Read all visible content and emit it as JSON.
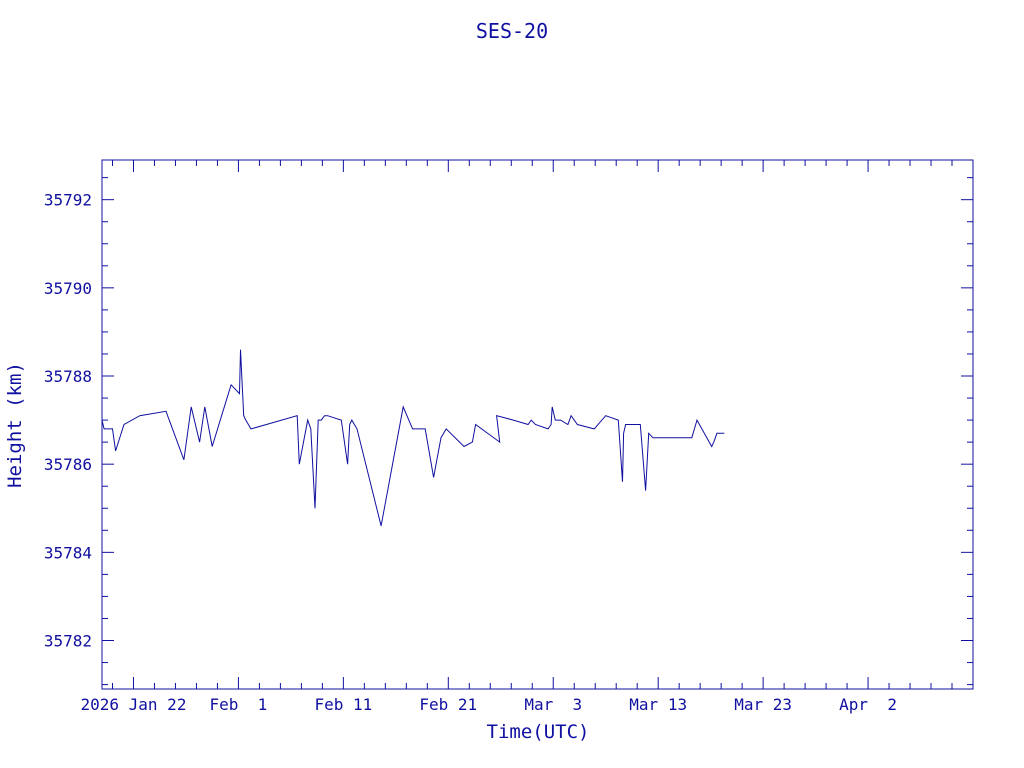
{
  "chart_data": {
    "type": "line",
    "title": "SES-20",
    "xlabel": "Time(UTC)",
    "ylabel": "Height (km)",
    "color": "#1010a0",
    "grid": false,
    "ylim": [
      35780.9,
      35792.9
    ],
    "yticks": [
      35782,
      35784,
      35786,
      35788,
      35790,
      35792
    ],
    "xlim_days": [
      -3.0,
      80.0
    ],
    "xticks": [
      {
        "label": "2026 Jan 22",
        "day": 0
      },
      {
        "label": "Feb  1",
        "day": 10
      },
      {
        "label": "Feb 11",
        "day": 20
      },
      {
        "label": "Feb 21",
        "day": 30
      },
      {
        "label": "Mar  3",
        "day": 40
      },
      {
        "label": "Mar 13",
        "day": 50
      },
      {
        "label": "Mar 23",
        "day": 60
      },
      {
        "label": "Apr  2",
        "day": 70
      }
    ],
    "series": [
      {
        "x": [
          -3.0,
          -2.8,
          -2.0,
          -1.7,
          -0.9,
          0.6,
          3.1,
          4.8,
          5.5,
          6.3,
          6.8,
          7.5,
          8.4,
          9.3,
          10.1,
          10.2,
          10.5,
          10.7,
          11.2,
          15.6,
          15.8,
          16.6,
          16.9,
          17.3,
          17.6,
          17.9,
          18.2,
          18.5,
          19.8,
          20.4,
          20.6,
          20.8,
          21.3,
          23.6,
          25.7,
          26.6,
          27.8,
          28.6,
          29.3,
          29.8,
          31.5,
          32.3,
          32.6,
          34.9,
          34.6,
          36.2,
          37.6,
          37.9,
          38.3,
          39.5,
          39.8,
          39.9,
          40.2,
          40.7,
          41.4,
          41.7,
          42.3,
          43.9,
          45.0,
          46.2,
          46.6,
          46.7,
          46.9,
          48.3,
          48.8,
          49.1,
          49.5,
          53.0,
          53.2,
          53.7,
          55.1,
          55.3,
          55.6,
          56.3
        ],
        "y": [
          35787.0,
          35786.8,
          35786.8,
          35786.3,
          35786.9,
          35787.1,
          35787.2,
          35786.1,
          35787.3,
          35786.5,
          35787.3,
          35786.4,
          35787.1,
          35787.8,
          35787.6,
          35788.6,
          35787.1,
          35787.0,
          35786.8,
          35787.1,
          35786.0,
          35787.0,
          35786.8,
          35785.0,
          35787.0,
          35787.0,
          35787.1,
          35787.1,
          35787.0,
          35786.0,
          35786.9,
          35787.0,
          35786.8,
          35784.6,
          35787.3,
          35786.8,
          35786.8,
          35785.7,
          35786.6,
          35786.8,
          35786.4,
          35786.5,
          35786.9,
          35786.5,
          35787.1,
          35787.0,
          35786.9,
          35787.0,
          35786.9,
          35786.8,
          35786.9,
          35787.3,
          35787.0,
          35787.0,
          35786.9,
          35787.1,
          35786.9,
          35786.8,
          35787.1,
          35787.0,
          35785.6,
          35786.7,
          35786.9,
          35786.9,
          35785.4,
          35786.7,
          35786.6,
          35786.6,
          35786.6,
          35787.0,
          35786.4,
          35786.5,
          35786.7,
          35786.7
        ]
      }
    ]
  }
}
